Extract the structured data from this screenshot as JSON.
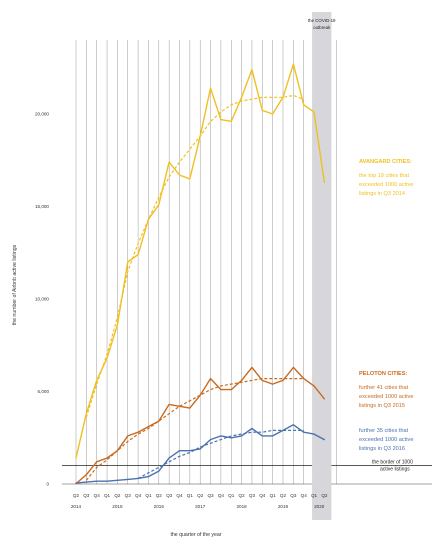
{
  "chart_data": {
    "type": "line",
    "ylabel": "the number of Airbnb active listings",
    "xlabel": "the quarter of the year",
    "ylim": [
      0,
      24000
    ],
    "yticks": [
      0,
      5000,
      10000,
      15000,
      20000
    ],
    "ytick_labels": [
      "0",
      "5,000",
      "10,000",
      "15,000",
      "20,000"
    ],
    "quarters": [
      "Q2",
      "Q3",
      "Q4",
      "Q1",
      "Q2",
      "Q3",
      "Q4",
      "Q1",
      "Q2",
      "Q3",
      "Q4",
      "Q1",
      "Q2",
      "Q3",
      "Q4",
      "Q1",
      "Q2",
      "Q3",
      "Q4",
      "Q1",
      "Q2",
      "Q3",
      "Q4",
      "Q1",
      "Q2"
    ],
    "years": [
      {
        "label": "2014",
        "index": 0
      },
      {
        "label": "2015",
        "index": 4
      },
      {
        "label": "2016",
        "index": 8
      },
      {
        "label": "2017",
        "index": 12
      },
      {
        "label": "2018",
        "index": 16
      },
      {
        "label": "2019",
        "index": 20
      },
      {
        "label": "2020",
        "index": 23.5
      }
    ],
    "covid": {
      "start_index": 23,
      "end_index": 24,
      "label": [
        "the COVID-19",
        "outbreak"
      ]
    },
    "threshold": {
      "value": 1000,
      "label": [
        "the border of 1000",
        "active listings"
      ]
    },
    "series": [
      {
        "name": "AVANGARD CITIES:",
        "color": "#f0c020",
        "trend_color": "#f0c020",
        "values": [
          1400,
          3800,
          5600,
          6800,
          8600,
          12000,
          12400,
          14300,
          15100,
          17400,
          16700,
          16500,
          18800,
          21400,
          19700,
          19600,
          20900,
          22400,
          20200,
          20000,
          20900,
          22700,
          20500,
          20100,
          16300
        ],
        "trend": [
          null,
          3600,
          5400,
          7000,
          9000,
          11500,
          13000,
          14300,
          15500,
          16600,
          17400,
          18100,
          18800,
          19600,
          20100,
          20500,
          20700,
          20800,
          20900,
          20900,
          20900,
          21000,
          20800,
          null,
          null
        ],
        "description": [
          "the top 19 cities that",
          "exceeded 1000 active",
          "listings in Q3 2014"
        ]
      },
      {
        "name": "PELOTON CITIES:",
        "color": "#c96a1e",
        "trend_color": "#c96a1e",
        "values": [
          20,
          500,
          1200,
          1400,
          1800,
          2600,
          2800,
          3100,
          3400,
          4300,
          4200,
          4100,
          4800,
          5700,
          5100,
          5100,
          5600,
          6300,
          5600,
          5400,
          5600,
          6300,
          5700,
          5300,
          4600
        ],
        "trend": [
          null,
          200,
          900,
          1300,
          1800,
          2300,
          2700,
          3000,
          3400,
          3800,
          4200,
          4500,
          4800,
          5100,
          5300,
          5400,
          5500,
          5600,
          5700,
          5700,
          5700,
          5700,
          5700,
          null,
          null
        ],
        "description": [
          "further 41 cities that",
          "exceeded 1000 active",
          "listings in Q3 2015"
        ]
      },
      {
        "name": "",
        "color": "#4a72b0",
        "trend_color": "#4a72b0",
        "values": [
          50,
          100,
          150,
          150,
          200,
          250,
          300,
          400,
          700,
          1400,
          1800,
          1800,
          1900,
          2400,
          2600,
          2500,
          2600,
          3000,
          2600,
          2600,
          2900,
          3200,
          2800,
          2700,
          2400
        ],
        "trend": [
          null,
          null,
          null,
          null,
          null,
          null,
          300,
          600,
          900,
          1200,
          1500,
          1700,
          2000,
          2200,
          2400,
          2600,
          2700,
          2800,
          2800,
          2900,
          2900,
          2900,
          2900,
          null,
          null
        ],
        "description": [
          "further 35 cities that",
          "exceeded 1000 active",
          "listings in Q3 2016"
        ]
      }
    ]
  }
}
